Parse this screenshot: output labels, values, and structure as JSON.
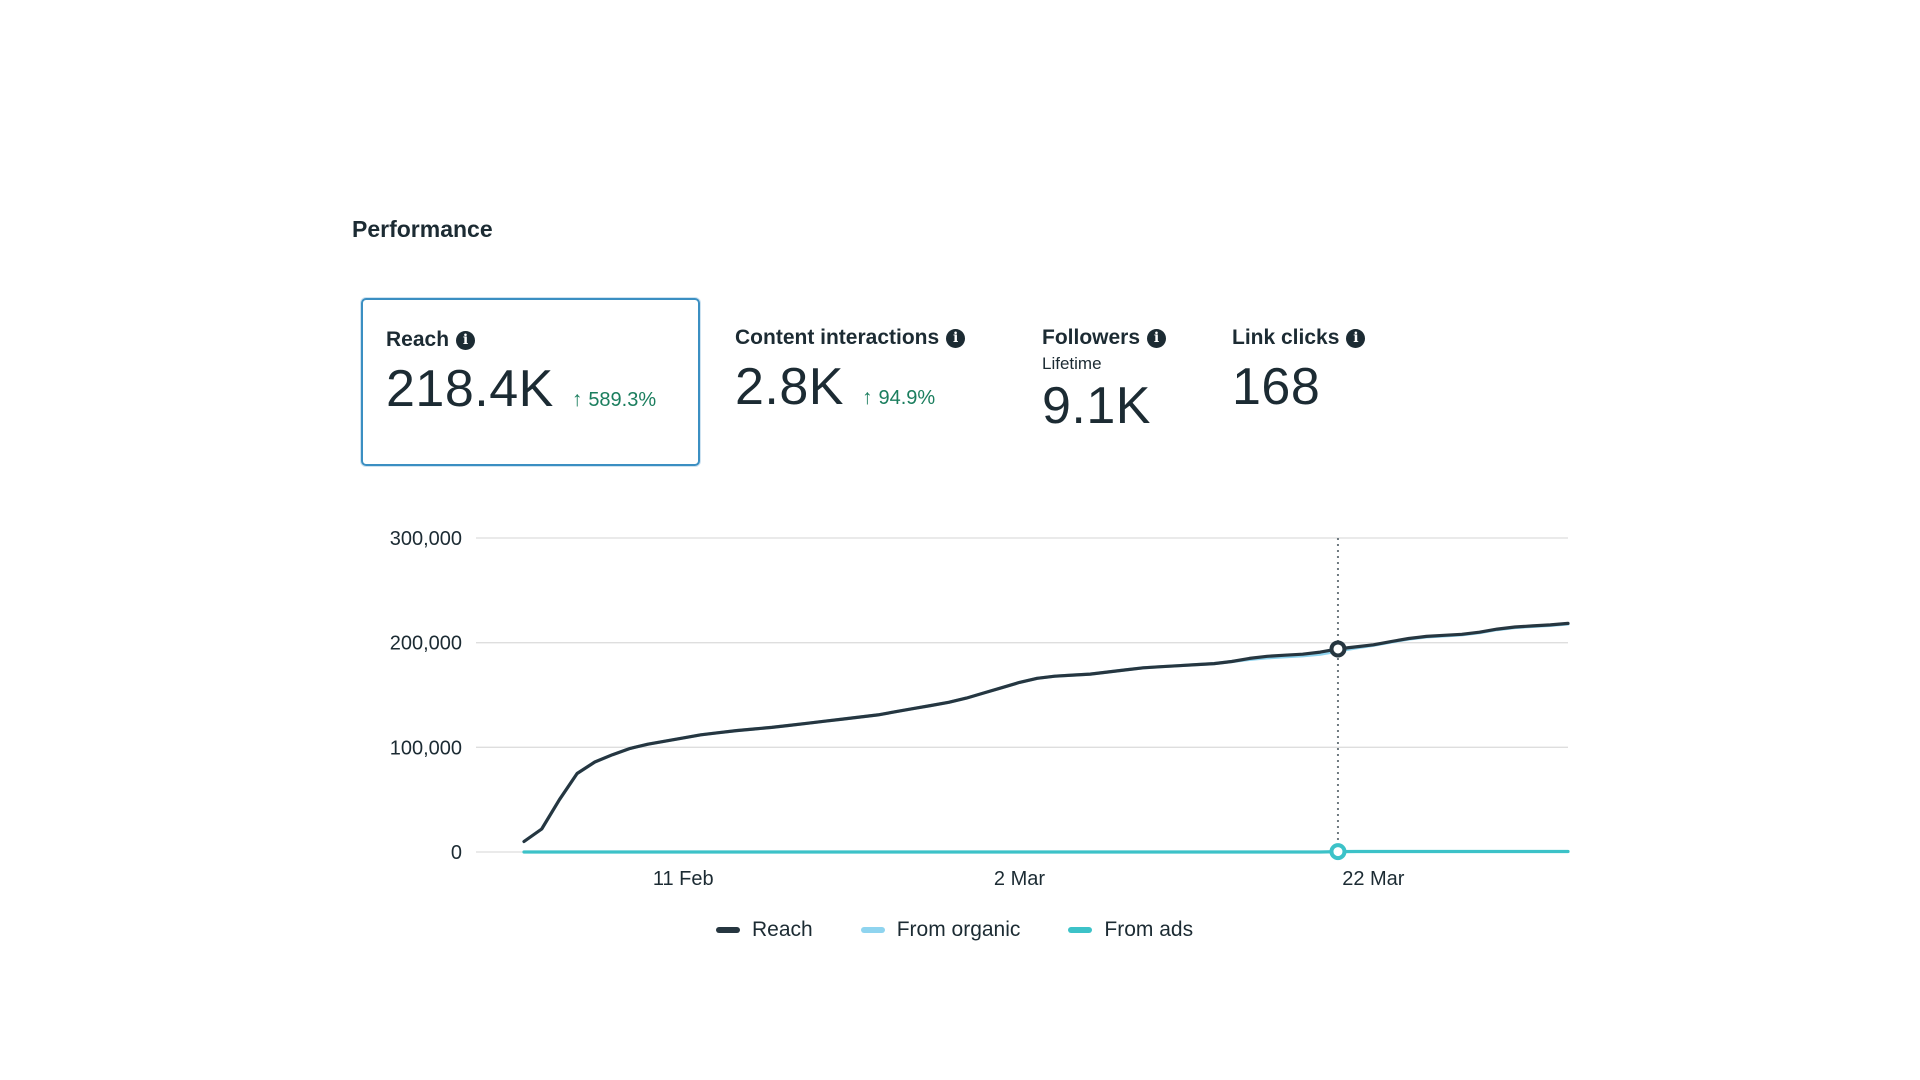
{
  "section": {
    "title": "Performance"
  },
  "metrics": [
    {
      "label": "Reach",
      "value": "218.4K",
      "change": "589.3%",
      "selected": true
    },
    {
      "label": "Content interactions",
      "value": "2.8K",
      "change": "94.9%"
    },
    {
      "label": "Followers",
      "sublabel": "Lifetime",
      "value": "9.1K"
    },
    {
      "label": "Link clicks",
      "value": "168"
    }
  ],
  "icons": {
    "info": "info-icon",
    "change": "arrow-up-icon"
  },
  "colors": {
    "reach": "#263640",
    "organic": "#8fd4ef",
    "ads": "#3cc2c8",
    "change_positive": "#1b7e5e",
    "selected_border": "#3b8fc2",
    "gridline": "#dedede"
  },
  "chart_data": {
    "type": "line",
    "x": [
      "2 Feb",
      "3 Feb",
      "4 Feb",
      "5 Feb",
      "6 Feb",
      "7 Feb",
      "8 Feb",
      "9 Feb",
      "10 Feb",
      "11 Feb",
      "12 Feb",
      "13 Feb",
      "14 Feb",
      "15 Feb",
      "16 Feb",
      "17 Feb",
      "18 Feb",
      "19 Feb",
      "20 Feb",
      "21 Feb",
      "22 Feb",
      "23 Feb",
      "24 Feb",
      "25 Feb",
      "26 Feb",
      "27 Feb",
      "28 Feb",
      "1 Mar",
      "2 Mar",
      "3 Mar",
      "4 Mar",
      "5 Mar",
      "6 Mar",
      "7 Mar",
      "8 Mar",
      "9 Mar",
      "10 Mar",
      "11 Mar",
      "12 Mar",
      "13 Mar",
      "14 Mar",
      "15 Mar",
      "16 Mar",
      "17 Mar",
      "18 Mar",
      "19 Mar",
      "20 Mar",
      "21 Mar",
      "22 Mar",
      "23 Mar",
      "24 Mar",
      "25 Mar",
      "26 Mar",
      "27 Mar",
      "28 Mar",
      "29 Mar",
      "30 Mar",
      "31 Mar",
      "1 Apr",
      "2 Apr"
    ],
    "x_ticks": [
      "11 Feb",
      "2 Mar",
      "22 Mar"
    ],
    "y_ticks": [
      "300,000",
      "200,000",
      "100,000",
      "0"
    ],
    "ylim": [
      0,
      300000
    ],
    "grid": true,
    "legend_position": "bottom-center",
    "highlight_x": "20 Mar",
    "series": [
      {
        "name": "Reach",
        "values": [
          10000,
          22000,
          50000,
          75000,
          86000,
          93000,
          99000,
          103000,
          106000,
          109000,
          112000,
          114000,
          116000,
          117500,
          119000,
          121000,
          123000,
          125000,
          127000,
          129000,
          131000,
          134000,
          137000,
          140000,
          143000,
          147000,
          152000,
          157000,
          162000,
          166000,
          168000,
          169000,
          170000,
          172000,
          174000,
          176000,
          177000,
          178000,
          179000,
          180000,
          182000,
          185000,
          187000,
          188000,
          189000,
          191000,
          194000,
          196000,
          198000,
          201000,
          204000,
          206000,
          207000,
          208000,
          210000,
          213000,
          215000,
          216000,
          217000,
          218400
        ]
      },
      {
        "name": "From organic",
        "values": [
          10000,
          22000,
          50000,
          75000,
          86000,
          93000,
          99000,
          103000,
          106000,
          109000,
          112000,
          114000,
          116000,
          117500,
          119000,
          121000,
          123000,
          125000,
          127000,
          129000,
          131000,
          134000,
          137000,
          140000,
          143000,
          147000,
          152000,
          157000,
          162000,
          166000,
          168000,
          169000,
          170000,
          172000,
          174000,
          176000,
          177000,
          178000,
          179000,
          180000,
          182000,
          184000,
          185500,
          186500,
          187500,
          189000,
          192000,
          195000,
          197500,
          200500,
          203500,
          205500,
          206500,
          207500,
          209500,
          212500,
          214500,
          215500,
          216500,
          217900
        ]
      },
      {
        "name": "From ads",
        "values": [
          0,
          0,
          0,
          0,
          0,
          0,
          0,
          0,
          0,
          0,
          0,
          0,
          0,
          0,
          0,
          0,
          0,
          0,
          0,
          0,
          0,
          0,
          0,
          0,
          0,
          0,
          0,
          0,
          0,
          0,
          0,
          0,
          0,
          0,
          0,
          0,
          0,
          0,
          0,
          0,
          0,
          0,
          0,
          0,
          0,
          0,
          400,
          450,
          480,
          500,
          500,
          500,
          500,
          500,
          500,
          500,
          500,
          500,
          500,
          500
        ]
      }
    ]
  }
}
